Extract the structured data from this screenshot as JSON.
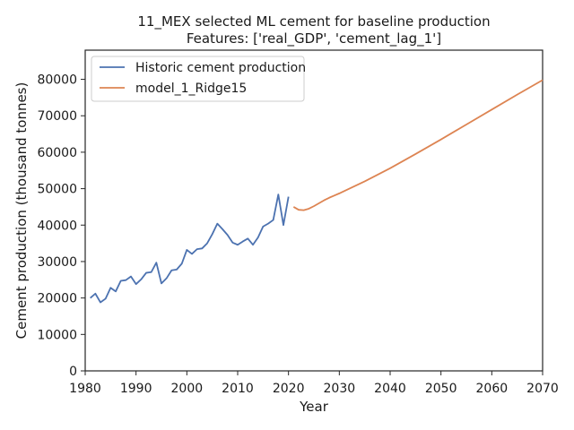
{
  "chart_data": {
    "type": "line",
    "title": "11_MEX selected ML cement for baseline production",
    "subtitle": "Features: ['real_GDP', 'cement_lag_1']",
    "xlabel": "Year",
    "ylabel": "Cement production (thousand tonnes)",
    "xlim": [
      1980,
      2070
    ],
    "ylim": [
      0,
      88000
    ],
    "xticks": [
      1980,
      1990,
      2000,
      2010,
      2020,
      2030,
      2040,
      2050,
      2060,
      2070
    ],
    "yticks": [
      0,
      10000,
      20000,
      30000,
      40000,
      50000,
      60000,
      70000,
      80000
    ],
    "grid": false,
    "legend_position": "top-left",
    "series": [
      {
        "name": "Historic cement production",
        "color": "#4c72b0",
        "x": [
          1981,
          1982,
          1983,
          1984,
          1985,
          1986,
          1987,
          1988,
          1989,
          1990,
          1991,
          1992,
          1993,
          1994,
          1995,
          1996,
          1997,
          1998,
          1999,
          2000,
          2001,
          2002,
          2003,
          2004,
          2005,
          2006,
          2007,
          2008,
          2009,
          2010,
          2011,
          2012,
          2013,
          2014,
          2015,
          2016,
          2017,
          2018,
          2019,
          2020
        ],
        "y": [
          20000,
          21200,
          18800,
          19800,
          22800,
          21800,
          24700,
          24900,
          25900,
          23800,
          25100,
          26900,
          27100,
          29700,
          24000,
          25400,
          27600,
          27800,
          29400,
          33200,
          32100,
          33400,
          33600,
          35000,
          37500,
          40400,
          38900,
          37300,
          35200,
          34600,
          35500,
          36300,
          34600,
          36600,
          39600,
          40400,
          41400,
          48400,
          40000,
          47800
        ]
      },
      {
        "name": "model_1_Ridge15",
        "color": "#dd8452",
        "x": [
          2021,
          2022,
          2023,
          2024,
          2025,
          2026,
          2027,
          2028,
          2029,
          2030,
          2035,
          2040,
          2045,
          2050,
          2055,
          2060,
          2065,
          2070
        ],
        "y": [
          45000,
          44200,
          44100,
          44500,
          45200,
          46000,
          46800,
          47500,
          48100,
          48700,
          52000,
          55600,
          59500,
          63500,
          67600,
          71700,
          75800,
          79800
        ]
      }
    ]
  }
}
